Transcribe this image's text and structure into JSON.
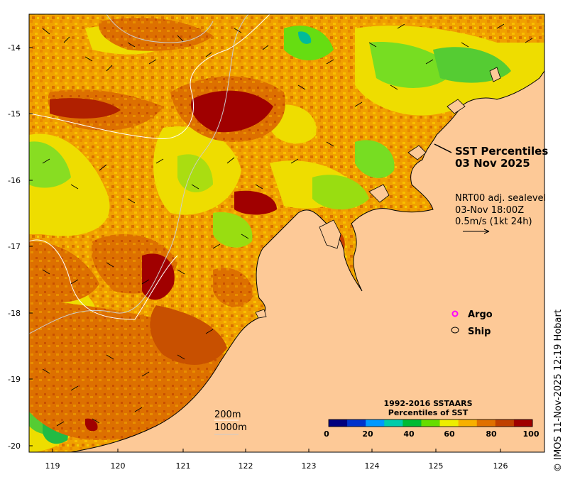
{
  "map": {
    "title_line1": "SST Percentiles",
    "title_line2": "03 Nov 2025",
    "currents": {
      "line1": "NRT00 adj. sealevel",
      "line2": "03-Nov 18:00Z",
      "line3": "0.5m/s (1kt 24h)"
    },
    "legend": {
      "argo": "Argo",
      "ship": "Ship",
      "argo_color": "#ff00ff"
    },
    "isobaths": {
      "shallow": "200m",
      "deep": "1000m"
    },
    "colorbar": {
      "title_line1": "1992-2016 SSTAARS",
      "title_line2": "Percentiles of SST",
      "ticks": [
        "0",
        "20",
        "40",
        "60",
        "80",
        "100"
      ],
      "colors": [
        "#00007f",
        "#0033cc",
        "#0099ff",
        "#00ccaa",
        "#00bb33",
        "#66dd00",
        "#eeee00",
        "#f8b000",
        "#e07000",
        "#c04000",
        "#a00000"
      ]
    },
    "lon_labels": [
      "119",
      "120",
      "121",
      "122",
      "123",
      "124",
      "125",
      "126"
    ],
    "lat_labels": [
      "-14",
      "-15",
      "-16",
      "-17",
      "-18",
      "-19",
      "-20"
    ],
    "credit": "© IMOS 11-Nov-2025 12:19 Hobart",
    "colors": {
      "land": "#fdc997",
      "coast": "#000000"
    }
  }
}
